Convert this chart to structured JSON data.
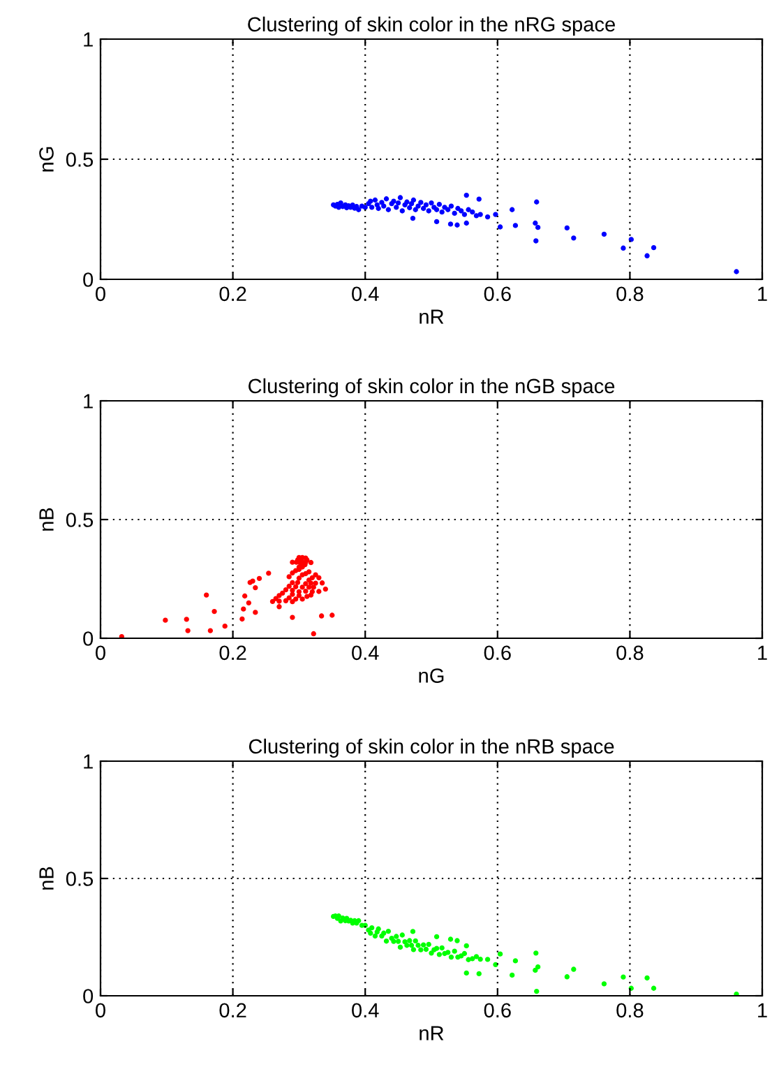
{
  "chart_data": [
    {
      "type": "scatter",
      "title": "Clustering of skin color in the nRG space",
      "xlabel": "nR",
      "ylabel": "nG",
      "color": "#0000ff",
      "marker": "circle",
      "grid": true,
      "xlim": [
        0,
        1
      ],
      "ylim": [
        0,
        1
      ],
      "xticks": [
        0,
        0.2,
        0.4,
        0.6,
        0.8,
        1
      ],
      "yticks": [
        0,
        0.5,
        1
      ],
      "x": [
        0.352,
        0.355,
        0.358,
        0.36,
        0.363,
        0.366,
        0.37,
        0.372,
        0.375,
        0.378,
        0.381,
        0.384,
        0.387,
        0.39,
        0.395,
        0.4,
        0.405,
        0.408,
        0.41,
        0.415,
        0.418,
        0.42,
        0.425,
        0.428,
        0.432,
        0.435,
        0.44,
        0.443,
        0.447,
        0.45,
        0.453,
        0.456,
        0.46,
        0.463,
        0.467,
        0.47,
        0.473,
        0.476,
        0.48,
        0.484,
        0.488,
        0.492,
        0.496,
        0.5,
        0.504,
        0.508,
        0.512,
        0.516,
        0.52,
        0.525,
        0.53,
        0.535,
        0.54,
        0.545,
        0.55,
        0.556,
        0.562,
        0.568,
        0.472,
        0.508,
        0.529,
        0.539,
        0.553,
        0.553,
        0.572,
        0.574,
        0.585,
        0.597,
        0.604,
        0.622,
        0.627,
        0.659,
        0.657,
        0.661,
        0.658,
        0.705,
        0.715,
        0.761,
        0.79,
        0.802,
        0.826,
        0.836,
        0.961
      ],
      "values": [
        0.31,
        0.305,
        0.312,
        0.3,
        0.318,
        0.303,
        0.31,
        0.298,
        0.306,
        0.3,
        0.309,
        0.296,
        0.303,
        0.29,
        0.305,
        0.3,
        0.315,
        0.325,
        0.3,
        0.33,
        0.31,
        0.295,
        0.32,
        0.305,
        0.335,
        0.29,
        0.315,
        0.325,
        0.3,
        0.318,
        0.34,
        0.285,
        0.31,
        0.322,
        0.298,
        0.315,
        0.33,
        0.29,
        0.305,
        0.32,
        0.295,
        0.31,
        0.285,
        0.318,
        0.3,
        0.29,
        0.312,
        0.28,
        0.3,
        0.29,
        0.305,
        0.275,
        0.295,
        0.285,
        0.27,
        0.29,
        0.28,
        0.265,
        0.254,
        0.24,
        0.23,
        0.226,
        0.234,
        0.35,
        0.334,
        0.27,
        0.26,
        0.27,
        0.218,
        0.29,
        0.224,
        0.322,
        0.234,
        0.216,
        0.16,
        0.214,
        0.172,
        0.188,
        0.13,
        0.166,
        0.098,
        0.132,
        0.032
      ]
    },
    {
      "type": "scatter",
      "title": "Clustering of skin color in the nGB space",
      "xlabel": "nG",
      "ylabel": "nB",
      "color": "#ff0000",
      "marker": "circle",
      "grid": true,
      "xlim": [
        0,
        1
      ],
      "ylim": [
        0,
        1
      ],
      "xticks": [
        0,
        0.2,
        0.4,
        0.6,
        0.8,
        1
      ],
      "yticks": [
        0,
        0.5,
        1
      ],
      "x": [
        0.31,
        0.305,
        0.312,
        0.3,
        0.318,
        0.303,
        0.31,
        0.298,
        0.306,
        0.3,
        0.309,
        0.296,
        0.303,
        0.29,
        0.305,
        0.3,
        0.315,
        0.325,
        0.3,
        0.33,
        0.31,
        0.295,
        0.32,
        0.305,
        0.335,
        0.29,
        0.315,
        0.325,
        0.3,
        0.318,
        0.34,
        0.285,
        0.31,
        0.322,
        0.298,
        0.315,
        0.33,
        0.29,
        0.305,
        0.32,
        0.295,
        0.31,
        0.285,
        0.318,
        0.3,
        0.29,
        0.312,
        0.28,
        0.3,
        0.29,
        0.305,
        0.275,
        0.295,
        0.285,
        0.27,
        0.29,
        0.28,
        0.265,
        0.254,
        0.24,
        0.23,
        0.226,
        0.234,
        0.35,
        0.334,
        0.27,
        0.26,
        0.27,
        0.218,
        0.29,
        0.224,
        0.322,
        0.234,
        0.216,
        0.16,
        0.214,
        0.172,
        0.188,
        0.13,
        0.166,
        0.098,
        0.132,
        0.032
      ],
      "values": [
        0.338,
        0.34,
        0.33,
        0.34,
        0.319,
        0.331,
        0.32,
        0.33,
        0.319,
        0.322,
        0.31,
        0.32,
        0.31,
        0.32,
        0.3,
        0.3,
        0.28,
        0.267,
        0.29,
        0.255,
        0.272,
        0.285,
        0.255,
        0.267,
        0.233,
        0.275,
        0.245,
        0.232,
        0.253,
        0.232,
        0.207,
        0.259,
        0.23,
        0.215,
        0.235,
        0.215,
        0.197,
        0.234,
        0.215,
        0.196,
        0.217,
        0.198,
        0.219,
        0.182,
        0.196,
        0.202,
        0.176,
        0.204,
        0.18,
        0.185,
        0.165,
        0.19,
        0.165,
        0.17,
        0.18,
        0.154,
        0.158,
        0.167,
        0.274,
        0.252,
        0.241,
        0.235,
        0.213,
        0.097,
        0.094,
        0.156,
        0.155,
        0.133,
        0.178,
        0.088,
        0.149,
        0.019,
        0.109,
        0.123,
        0.182,
        0.081,
        0.113,
        0.051,
        0.08,
        0.032,
        0.076,
        0.032,
        0.007
      ]
    },
    {
      "type": "scatter",
      "title": "Clustering of skin color in the nRB space",
      "xlabel": "nR",
      "ylabel": "nB",
      "color": "#00ff00",
      "marker": "circle",
      "grid": true,
      "xlim": [
        0,
        1
      ],
      "ylim": [
        0,
        1
      ],
      "xticks": [
        0,
        0.2,
        0.4,
        0.6,
        0.8,
        1
      ],
      "yticks": [
        0,
        0.5,
        1
      ],
      "x": [
        0.352,
        0.355,
        0.358,
        0.36,
        0.363,
        0.366,
        0.37,
        0.372,
        0.375,
        0.378,
        0.381,
        0.384,
        0.387,
        0.39,
        0.395,
        0.4,
        0.405,
        0.408,
        0.41,
        0.415,
        0.418,
        0.42,
        0.425,
        0.428,
        0.432,
        0.435,
        0.44,
        0.443,
        0.447,
        0.45,
        0.453,
        0.456,
        0.46,
        0.463,
        0.467,
        0.47,
        0.473,
        0.476,
        0.48,
        0.484,
        0.488,
        0.492,
        0.496,
        0.5,
        0.504,
        0.508,
        0.512,
        0.516,
        0.52,
        0.525,
        0.53,
        0.535,
        0.54,
        0.545,
        0.55,
        0.556,
        0.562,
        0.568,
        0.472,
        0.508,
        0.529,
        0.539,
        0.553,
        0.553,
        0.572,
        0.574,
        0.585,
        0.597,
        0.604,
        0.622,
        0.627,
        0.659,
        0.657,
        0.661,
        0.658,
        0.705,
        0.715,
        0.761,
        0.79,
        0.802,
        0.826,
        0.836,
        0.961
      ],
      "values": [
        0.338,
        0.34,
        0.33,
        0.34,
        0.319,
        0.331,
        0.32,
        0.33,
        0.319,
        0.322,
        0.31,
        0.32,
        0.31,
        0.32,
        0.3,
        0.3,
        0.28,
        0.267,
        0.29,
        0.255,
        0.272,
        0.285,
        0.255,
        0.267,
        0.233,
        0.275,
        0.245,
        0.232,
        0.253,
        0.232,
        0.207,
        0.259,
        0.23,
        0.215,
        0.235,
        0.215,
        0.197,
        0.234,
        0.215,
        0.196,
        0.217,
        0.198,
        0.219,
        0.182,
        0.196,
        0.202,
        0.176,
        0.204,
        0.18,
        0.185,
        0.165,
        0.19,
        0.165,
        0.17,
        0.18,
        0.154,
        0.158,
        0.167,
        0.274,
        0.252,
        0.241,
        0.235,
        0.213,
        0.097,
        0.094,
        0.156,
        0.155,
        0.133,
        0.178,
        0.088,
        0.149,
        0.019,
        0.109,
        0.123,
        0.182,
        0.081,
        0.113,
        0.051,
        0.08,
        0.032,
        0.076,
        0.032,
        0.007
      ]
    }
  ]
}
